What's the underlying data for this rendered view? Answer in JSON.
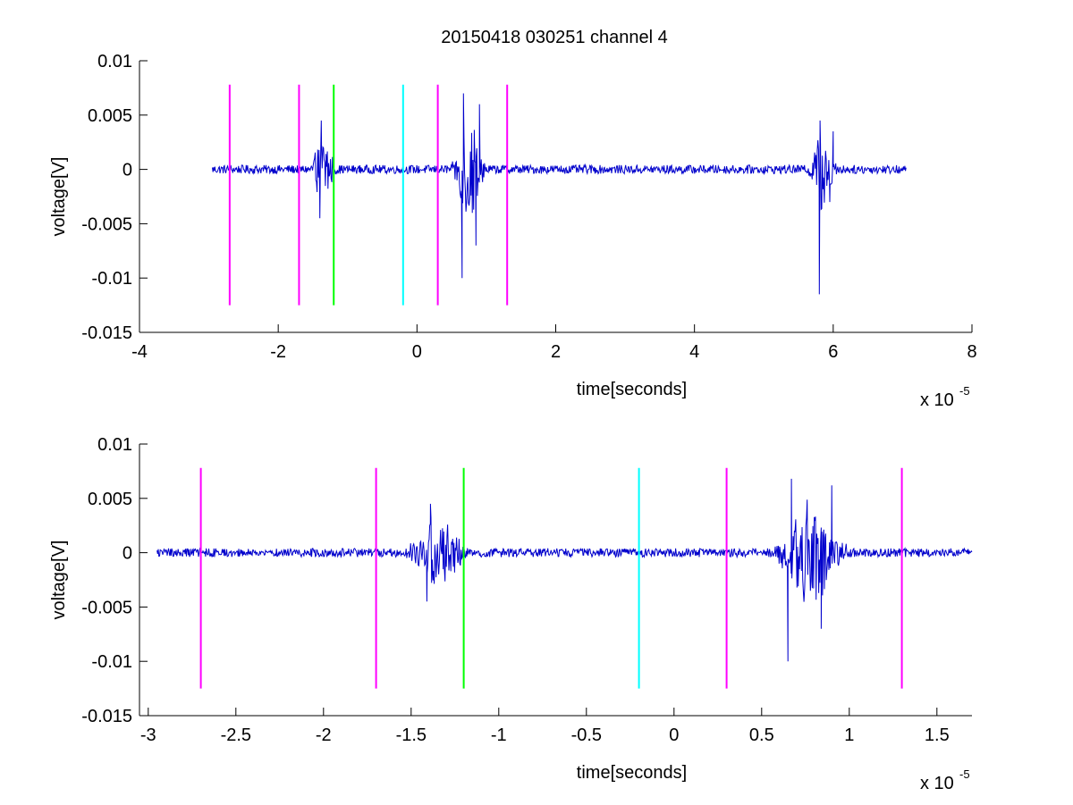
{
  "figure": {
    "title": "20150418 030251 channel 4"
  },
  "chart_data": [
    {
      "type": "line",
      "title": "20150418 030251 channel 4",
      "xlabel": "time[seconds]",
      "ylabel": "voltage[V]",
      "x_multiplier": {
        "base": "x 10",
        "exponent": "-5"
      },
      "xlim": [
        -4,
        8
      ],
      "ylim": [
        -0.015,
        0.01
      ],
      "xticks": [
        -4,
        -2,
        0,
        2,
        4,
        6,
        8
      ],
      "xtick_labels": [
        "-4",
        "-2",
        "0",
        "2",
        "4",
        "6",
        "8"
      ],
      "yticks": [
        0.01,
        0.005,
        0,
        -0.005,
        -0.01,
        -0.015
      ],
      "ytick_labels": [
        "0.01",
        "0.005",
        "0",
        "-0.005",
        "-0.01",
        "-0.015"
      ],
      "grid": false,
      "series": [
        {
          "color": "#0000cc",
          "x_range": [
            -2.95,
            7.05
          ],
          "baseline_noise": 0.0004,
          "bursts": [
            {
              "center": -1.35,
              "amplitude": 0.0045,
              "width": 0.12
            },
            {
              "center": 0.75,
              "amplitude": 0.007,
              "width": 0.16
            },
            {
              "center": 5.85,
              "amplitude": 0.0055,
              "width": 0.14
            }
          ],
          "spikes": [
            {
              "x": -1.4,
              "y": -0.0045
            },
            {
              "x": -1.38,
              "y": 0.0045
            },
            {
              "x": 0.65,
              "y": -0.01
            },
            {
              "x": 0.67,
              "y": 0.007
            },
            {
              "x": 0.85,
              "y": -0.007
            },
            {
              "x": 0.9,
              "y": 0.006
            },
            {
              "x": 5.8,
              "y": -0.0115
            },
            {
              "x": 5.81,
              "y": 0.0045
            },
            {
              "x": 5.95,
              "y": -0.003
            },
            {
              "x": 6.0,
              "y": 0.0035
            }
          ]
        }
      ],
      "vlines": [
        {
          "x": -2.7,
          "color": "#ff00ff"
        },
        {
          "x": -1.7,
          "color": "#ff00ff"
        },
        {
          "x": -1.2,
          "color": "#00ff00"
        },
        {
          "x": -0.2,
          "color": "#00ffff"
        },
        {
          "x": 0.3,
          "color": "#ff00ff"
        },
        {
          "x": 1.3,
          "color": "#ff00ff"
        }
      ],
      "vline_yrange": [
        -0.0125,
        0.0078
      ]
    },
    {
      "type": "line",
      "xlabel": "time[seconds]",
      "ylabel": "voltage[V]",
      "x_multiplier": {
        "base": "x 10",
        "exponent": "-5"
      },
      "xlim": [
        -3.05,
        1.7
      ],
      "ylim": [
        -0.015,
        0.01
      ],
      "xticks": [
        -3,
        -2.5,
        -2,
        -1.5,
        -1,
        -0.5,
        0,
        0.5,
        1,
        1.5
      ],
      "xtick_labels": [
        "-3",
        "-2.5",
        "-2",
        "-1.5",
        "-1",
        "-0.5",
        "0",
        "0.5",
        "1",
        "1.5"
      ],
      "yticks": [
        0.01,
        0.005,
        0,
        -0.005,
        -0.01,
        -0.015
      ],
      "ytick_labels": [
        "0.01",
        "0.005",
        "0",
        "-0.005",
        "-0.01",
        "-0.015"
      ],
      "grid": false,
      "series": [
        {
          "color": "#0000cc",
          "x_range": [
            -2.95,
            1.7
          ],
          "baseline_noise": 0.0004,
          "bursts": [
            {
              "center": -1.35,
              "amplitude": 0.0045,
              "width": 0.12
            },
            {
              "center": 0.78,
              "amplitude": 0.0068,
              "width": 0.14
            }
          ],
          "spikes": [
            {
              "x": -1.41,
              "y": -0.0045
            },
            {
              "x": -1.39,
              "y": 0.0045
            },
            {
              "x": 0.65,
              "y": -0.01
            },
            {
              "x": 0.67,
              "y": 0.0068
            },
            {
              "x": 0.84,
              "y": -0.007
            },
            {
              "x": 0.9,
              "y": 0.0062
            }
          ]
        }
      ],
      "vlines": [
        {
          "x": -2.7,
          "color": "#ff00ff"
        },
        {
          "x": -1.7,
          "color": "#ff00ff"
        },
        {
          "x": -1.2,
          "color": "#00ff00"
        },
        {
          "x": -0.2,
          "color": "#00ffff"
        },
        {
          "x": 0.3,
          "color": "#ff00ff"
        },
        {
          "x": 1.3,
          "color": "#ff00ff"
        }
      ],
      "vline_yrange": [
        -0.0125,
        0.0078
      ]
    }
  ]
}
